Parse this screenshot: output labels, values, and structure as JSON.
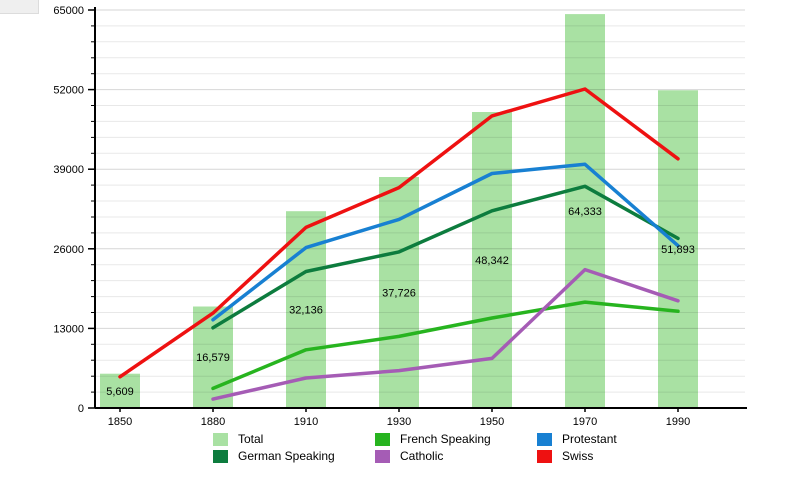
{
  "chart_data": {
    "type": "bar+line",
    "title": "",
    "xlabel": "",
    "ylabel": "",
    "x": [
      "1850",
      "1880",
      "1910",
      "1930",
      "1950",
      "1970",
      "1990"
    ],
    "bars": {
      "name": "Total",
      "color": "#a9e1a3",
      "values": [
        5609,
        16579,
        32136,
        37726,
        48342,
        64333,
        51893
      ],
      "labels": [
        "5,609",
        "16,579",
        "32,136",
        "37,726",
        "48,342",
        "64,333",
        "51,893"
      ]
    },
    "series": [
      {
        "name": "French Speaking",
        "color": "#27b41f",
        "values": [
          null,
          3200,
          9500,
          11700,
          14700,
          17300,
          15800
        ]
      },
      {
        "name": "Catholic",
        "color": "#a55cb5",
        "values": [
          null,
          1450,
          4900,
          6100,
          8100,
          22600,
          17500
        ]
      },
      {
        "name": "German Speaking",
        "color": "#0d7c3e",
        "values": [
          null,
          13100,
          22300,
          25500,
          32200,
          36200,
          27700
        ]
      },
      {
        "name": "Protestant",
        "color": "#1880d2",
        "values": [
          null,
          14400,
          26200,
          30800,
          38300,
          39800,
          26500
        ]
      },
      {
        "name": "Swiss",
        "color": "#ee1111",
        "values": [
          5100,
          15500,
          29500,
          36000,
          47700,
          52100,
          40700
        ]
      }
    ],
    "ylim": [
      0,
      65000
    ],
    "yticks": [
      0,
      13000,
      26000,
      39000,
      52000,
      65000
    ],
    "ytick_labels": [
      "0",
      "13000",
      "26000",
      "39000",
      "52000",
      "65000"
    ],
    "minor_step": 2600,
    "grid": true,
    "legend_position": "bottom",
    "legend": [
      {
        "label": "Total",
        "color": "#a9e1a3"
      },
      {
        "label": "French Speaking",
        "color": "#27b41f"
      },
      {
        "label": "Protestant",
        "color": "#1880d2"
      },
      {
        "label": "German Speaking",
        "color": "#0d7c3e"
      },
      {
        "label": "Catholic",
        "color": "#a55cb5"
      },
      {
        "label": "Swiss",
        "color": "#ee1111"
      }
    ]
  }
}
